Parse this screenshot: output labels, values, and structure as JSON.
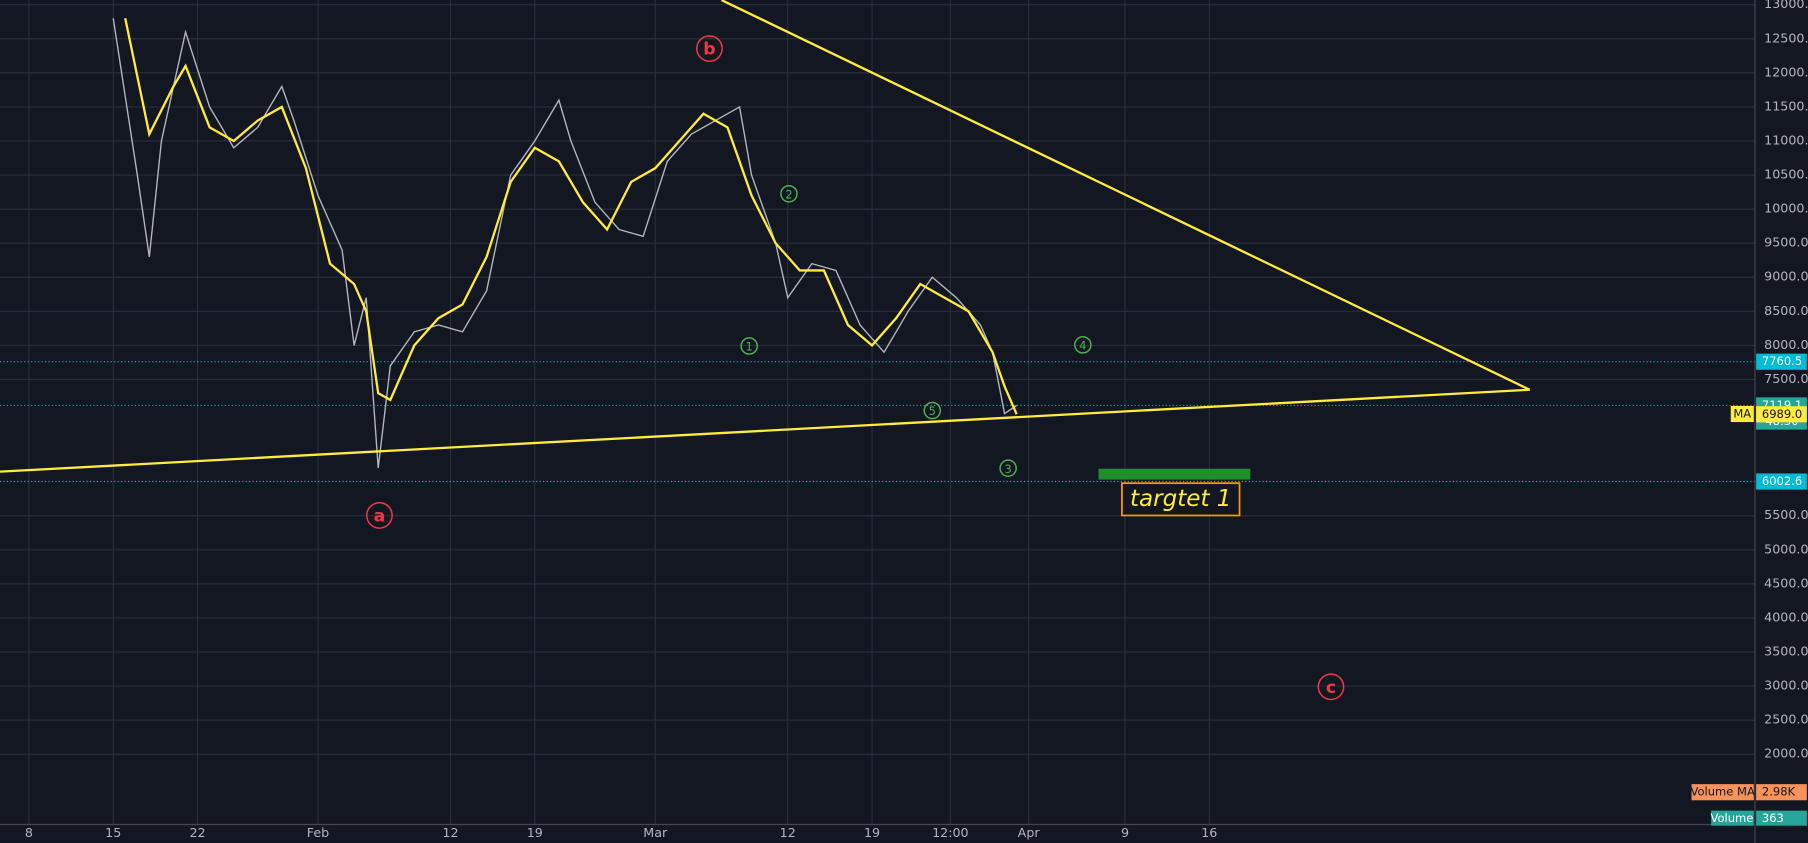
{
  "chart_data": {
    "type": "line",
    "xlim": [
      4.6,
      150.3
    ],
    "ylim": [
      969,
      13068
    ],
    "xticks": [
      {
        "value": 7,
        "label": "8"
      },
      {
        "value": 14,
        "label": "15"
      },
      {
        "value": 21,
        "label": "22"
      },
      {
        "value": 31,
        "label": "Feb"
      },
      {
        "value": 42,
        "label": "12"
      },
      {
        "value": 49,
        "label": "19"
      },
      {
        "value": 59,
        "label": "Mar"
      },
      {
        "value": 70,
        "label": "12"
      },
      {
        "value": 77,
        "label": "19"
      },
      {
        "value": 83.5,
        "label": "12:00"
      },
      {
        "value": 90,
        "label": "Apr"
      },
      {
        "value": 98,
        "label": "9"
      },
      {
        "value": 105,
        "label": "16"
      }
    ],
    "yticks": [
      {
        "value": 13000,
        "label": "13000.0"
      },
      {
        "value": 12500,
        "label": "12500.0"
      },
      {
        "value": 12000,
        "label": "12000.0"
      },
      {
        "value": 11500,
        "label": "11500.0"
      },
      {
        "value": 11000,
        "label": "11000.0"
      },
      {
        "value": 10500,
        "label": "10500.0"
      },
      {
        "value": 10000,
        "label": "10000.0"
      },
      {
        "value": 9500,
        "label": "9500.0"
      },
      {
        "value": 9000,
        "label": "9000.0"
      },
      {
        "value": 8500,
        "label": "8500.0"
      },
      {
        "value": 8000,
        "label": "8000.0"
      },
      {
        "value": 7500,
        "label": "7500.0"
      },
      {
        "value": 5500,
        "label": "5500.0"
      },
      {
        "value": 5000,
        "label": "5000.0"
      },
      {
        "value": 4500,
        "label": "4500.0"
      },
      {
        "value": 4000,
        "label": "4000.0"
      },
      {
        "value": 3500,
        "label": "3500.0"
      },
      {
        "value": 3000,
        "label": "3000.0"
      },
      {
        "value": 2500,
        "label": "2500.0"
      },
      {
        "value": 2000,
        "label": "2000.0"
      }
    ],
    "grid": true,
    "series": [
      {
        "color": "#b2b5be",
        "x": [
          14,
          16,
          17,
          18,
          20,
          22,
          24,
          26,
          28,
          29,
          31,
          33,
          34,
          35,
          36,
          37,
          39,
          41,
          43,
          45,
          47,
          49,
          51,
          52,
          54,
          56,
          58,
          60,
          62,
          64,
          66,
          67,
          69,
          70,
          72,
          74,
          76,
          78,
          79,
          80,
          82,
          84,
          86,
          87,
          88,
          89
        ],
        "values": [
          12800,
          10500,
          9300,
          11000,
          12600,
          11500,
          10900,
          11200,
          11800,
          11300,
          10200,
          9400,
          8000,
          8700,
          6200,
          7700,
          8200,
          8300,
          8200,
          8800,
          10500,
          11000,
          11600,
          11000,
          10100,
          9700,
          9600,
          10700,
          11100,
          11300,
          11500,
          10500,
          9500,
          8700,
          9200,
          9100,
          8300,
          7900,
          8200,
          8500,
          9000,
          8700,
          8300,
          7900,
          7000,
          7119.1
        ]
      },
      {
        "name": "MA",
        "color": "#ffeb3b",
        "x": [
          15,
          17,
          19,
          20,
          22,
          24,
          26,
          28,
          30,
          32,
          34,
          35,
          36,
          37,
          39,
          41,
          43,
          45,
          47,
          49,
          51,
          53,
          55,
          57,
          59,
          61,
          63,
          65,
          67,
          69,
          71,
          73,
          75,
          77,
          79,
          81,
          83,
          85,
          87,
          88,
          89
        ],
        "values": [
          12800,
          11100,
          11800,
          12100,
          11200,
          11000,
          11300,
          11500,
          10600,
          9200,
          8900,
          8500,
          7300,
          7200,
          8000,
          8400,
          8600,
          9300,
          10400,
          10900,
          10700,
          10100,
          9700,
          10400,
          10600,
          11000,
          11400,
          11200,
          10200,
          9500,
          9100,
          9100,
          8300,
          8000,
          8400,
          8900,
          8700,
          8500,
          7900,
          7400,
          6989.0
        ]
      }
    ],
    "trendlines": [
      {
        "x": [
          64.5,
          131.6
        ],
        "y": [
          13068,
          7349
        ],
        "color": "#ffeb3b"
      },
      {
        "x": [
          4.6,
          131.6
        ],
        "y": [
          6147,
          7349
        ],
        "color": "#ffeb3b"
      }
    ],
    "price_levels": [
      {
        "value": 7760.5,
        "color": "#00bcd4"
      },
      {
        "value": 7119.1,
        "color": "#26a69a"
      },
      {
        "value": 6002.6,
        "color": "#00bcd4"
      }
    ],
    "ma_tag": {
      "value": 6989.0,
      "label": "6989.0",
      "color": "#ffeb3b"
    },
    "countdown": "48:50",
    "annotations": [
      {
        "text": "a",
        "x": 36.1,
        "y": 5505,
        "color": "#f23645"
      },
      {
        "text": "b",
        "x": 63.5,
        "y": 12357,
        "color": "#f23645"
      },
      {
        "text": "c",
        "x": 115.1,
        "y": 2990,
        "color": "#f23645"
      },
      {
        "text": "1",
        "x": 66.8,
        "y": 7991,
        "color": "#4caf50"
      },
      {
        "text": "2",
        "x": 70.1,
        "y": 10225,
        "color": "#4caf50"
      },
      {
        "text": "3",
        "x": 88.3,
        "y": 6198,
        "color": "#4caf50"
      },
      {
        "text": "4",
        "x": 94.5,
        "y": 8008,
        "color": "#4caf50"
      },
      {
        "text": "5",
        "x": 82.0,
        "y": 7044,
        "color": "#4caf50"
      }
    ],
    "target": {
      "x": [
        95.8,
        108.4
      ],
      "y": [
        6030,
        6190
      ],
      "color": "#1e8f2a",
      "label": "targtet 1"
    },
    "volume_ma": {
      "name": "Volume MA",
      "value": 2980,
      "value_label": "2.98K",
      "color": "#f7925a"
    },
    "volume": {
      "name": "Volume",
      "value": 363,
      "color": "#26a69a"
    }
  }
}
